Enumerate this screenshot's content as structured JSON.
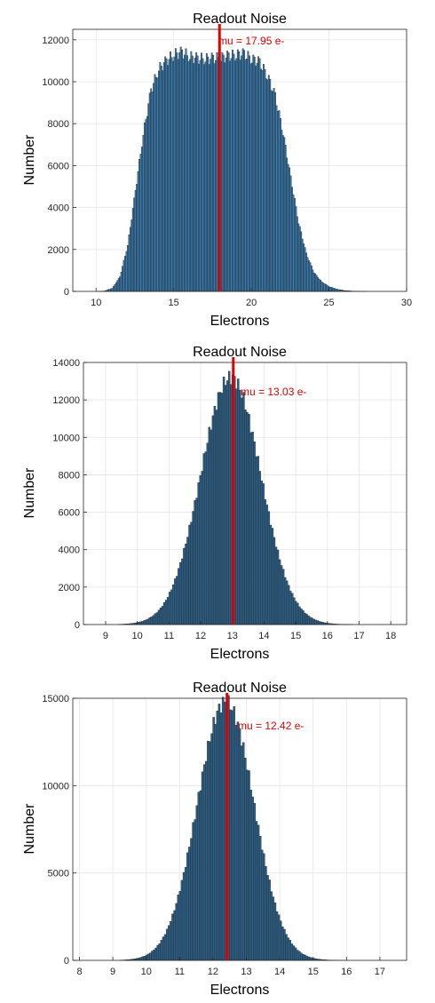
{
  "chart_data": [
    {
      "type": "bar",
      "title": "Readout Noise",
      "xlabel": "Electrons",
      "ylabel": "Number",
      "xlim": [
        8.5,
        30
      ],
      "ylim": [
        0,
        12500
      ],
      "xticks": [
        10,
        15,
        20,
        25,
        30
      ],
      "yticks": [
        0,
        2000,
        4000,
        6000,
        8000,
        10000,
        12000
      ],
      "grid": true,
      "bar_color": "#3a7cb0",
      "mean_line": {
        "x": 17.95,
        "color": "#e00000"
      },
      "annotation": "mu = 17.95 e-",
      "histogram": {
        "x": [
          10,
          10.5,
          11,
          11.5,
          12,
          12.5,
          13,
          13.5,
          14,
          14.5,
          15,
          15.5,
          16,
          16.5,
          17,
          17.5,
          18,
          18.5,
          19,
          19.5,
          20,
          20.5,
          21,
          21.5,
          22,
          22.5,
          23,
          23.5,
          24,
          24.5,
          25,
          25.5,
          26,
          26.5,
          27,
          27.5,
          28
        ],
        "y": [
          0,
          20,
          150,
          700,
          2200,
          4800,
          7500,
          9600,
          10600,
          11000,
          11300,
          11400,
          11200,
          11100,
          11100,
          11100,
          11150,
          11200,
          11300,
          11300,
          11100,
          10900,
          10300,
          9300,
          7600,
          5400,
          3300,
          1800,
          900,
          450,
          220,
          100,
          40,
          15,
          5,
          0,
          0
        ]
      }
    },
    {
      "type": "bar",
      "title": "Readout Noise",
      "xlabel": "Electrons",
      "ylabel": "Number",
      "xlim": [
        8.3,
        18.5
      ],
      "ylim": [
        0,
        14000
      ],
      "xticks": [
        9,
        10,
        11,
        12,
        13,
        14,
        15,
        16,
        17,
        18
      ],
      "yticks": [
        0,
        2000,
        4000,
        6000,
        8000,
        10000,
        12000,
        14000
      ],
      "grid": true,
      "bar_color": "#2e5f86",
      "mean_line": {
        "x": 13.03,
        "color": "#e00000"
      },
      "annotation": "mu = 13.03 e-",
      "gaussian": {
        "mean": 12.95,
        "sigma": 0.95,
        "peak": 13200,
        "x_from": 9.4,
        "x_to": 16.8,
        "bins": 130
      }
    },
    {
      "type": "bar",
      "title": "Readout Noise",
      "xlabel": "Electrons",
      "ylabel": "Number",
      "xlim": [
        7.8,
        17.8
      ],
      "ylim": [
        0,
        15000
      ],
      "xticks": [
        8,
        9,
        10,
        11,
        12,
        13,
        14,
        15,
        16,
        17
      ],
      "yticks": [
        0,
        5000,
        10000,
        15000
      ],
      "grid": true,
      "bar_color": "#2e5f86",
      "mean_line": {
        "x": 12.42,
        "color": "#e00000"
      },
      "annotation": "mu = 12.42 e-",
      "gaussian": {
        "mean": 12.38,
        "sigma": 0.85,
        "peak": 14800,
        "x_from": 9.2,
        "x_to": 15.9,
        "bins": 120
      }
    }
  ]
}
